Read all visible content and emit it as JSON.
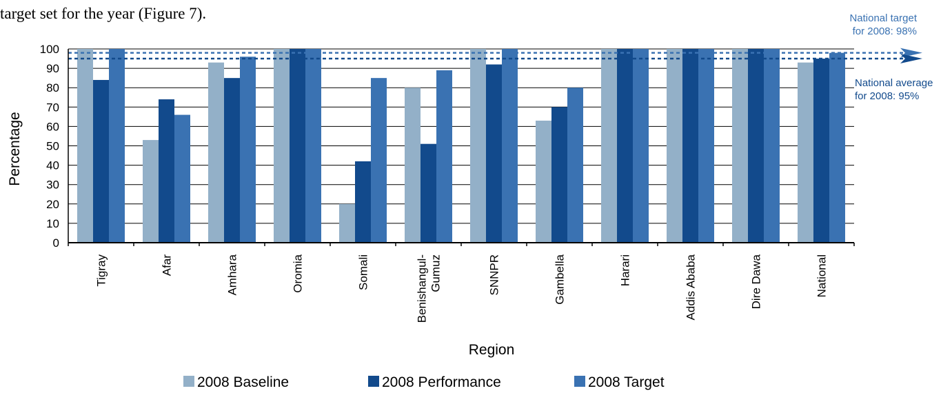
{
  "intro_text": "target set for the year (Figure 7).",
  "chart_data": {
    "type": "bar",
    "xlabel": "Region",
    "ylabel": "Percentage",
    "ylim": [
      0,
      100
    ],
    "yticks": [
      0,
      10,
      20,
      30,
      40,
      50,
      60,
      70,
      80,
      90,
      100
    ],
    "grid": true,
    "legend_position": "bottom",
    "categories": [
      [
        "Tigray"
      ],
      [
        "Afar"
      ],
      [
        "Amhara"
      ],
      [
        "Oromia"
      ],
      [
        "Somali"
      ],
      [
        "Benishangul-",
        "Gumuz"
      ],
      [
        "SNNPR"
      ],
      [
        "Gambella"
      ],
      [
        "Harari"
      ],
      [
        "Addis Ababa"
      ],
      [
        "Dire Dawa"
      ],
      [
        "National"
      ]
    ],
    "series": [
      {
        "name": "2008 Baseline",
        "color": "#93b0c8",
        "values": [
          100,
          53,
          93,
          100,
          20,
          80,
          100,
          63,
          100,
          100,
          100,
          93
        ]
      },
      {
        "name": "2008 Performance",
        "color": "#124a8c",
        "values": [
          84,
          74,
          85,
          100,
          42,
          51,
          92,
          70,
          100,
          100,
          100,
          95
        ]
      },
      {
        "name": "2008 Target",
        "color": "#3a72b2",
        "values": [
          100,
          66,
          96,
          100,
          85,
          89,
          100,
          80,
          100,
          100,
          100,
          98
        ]
      }
    ],
    "reference_lines": [
      {
        "value": 98,
        "label": [
          "National target",
          "for 2008: 98%"
        ],
        "color": "#3a72b2"
      },
      {
        "value": 95,
        "label": [
          "National average",
          "for 2008:  95%"
        ],
        "color": "#124a8c"
      }
    ]
  }
}
